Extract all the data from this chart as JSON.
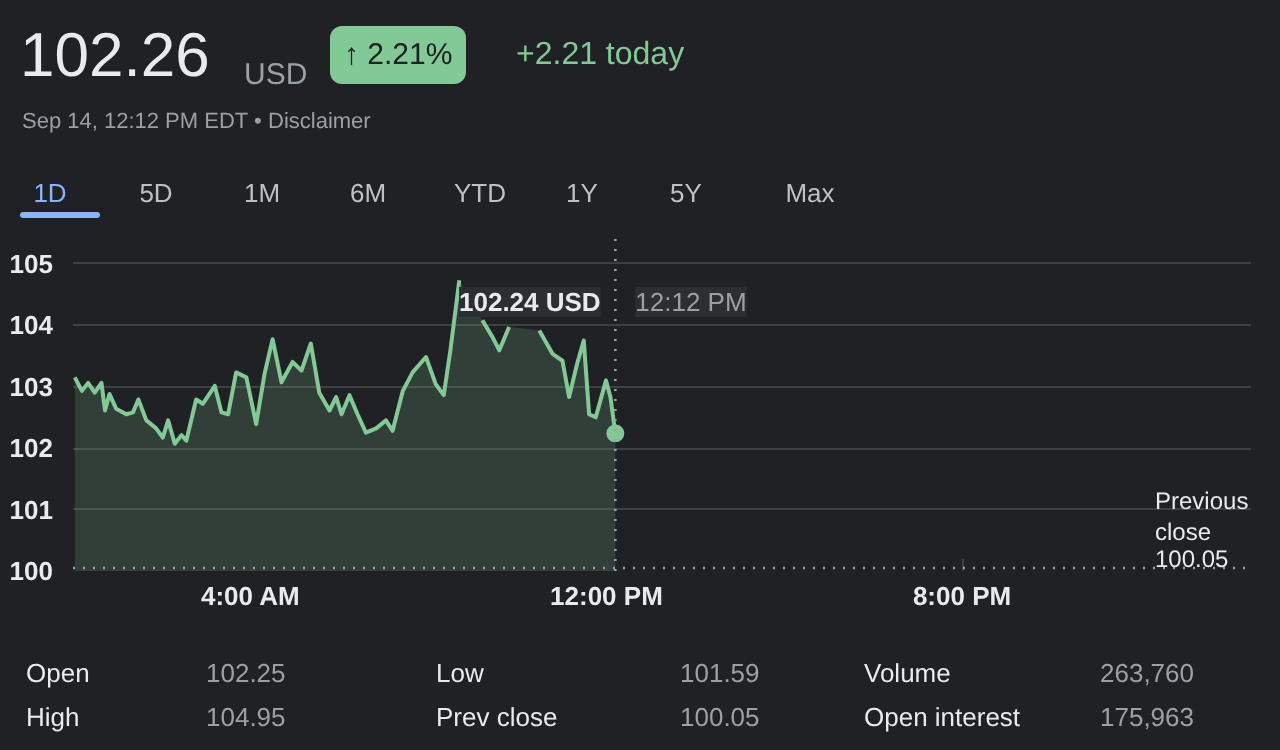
{
  "chart_data": {
    "type": "area",
    "title": "102.26",
    "annotations": [
      "USD",
      "↑ 2.21%",
      "+2.21 today",
      "Sep 14, 12:12 PM EDT •",
      "Disclaimer",
      "1D",
      "5D",
      "1M",
      "6M",
      "YTD",
      "1Y",
      "5Y",
      "Max",
      "Open",
      "102.25",
      "High",
      "104.95",
      "Low",
      "101.59",
      "Prev close",
      "100.05",
      "Volume",
      "263,760",
      "Open interest",
      "175,963",
      "102.24 USD"
    ],
    "x": [
      0.04,
      0.2,
      0.34,
      0.49,
      0.64,
      0.72,
      0.82,
      0.97,
      1.2,
      1.35,
      1.47,
      1.65,
      1.87,
      2.02,
      2.14,
      2.29,
      2.44,
      2.55,
      2.77,
      2.92,
      3.19,
      3.34,
      3.49,
      3.67,
      3.9,
      4.12,
      4.31,
      4.49,
      4.69,
      4.94,
      5.14,
      5.35,
      5.54,
      5.77,
      5.92,
      6.04,
      6.22,
      6.4,
      6.59,
      6.82,
      7.04,
      7.19,
      7.42,
      7.64,
      7.94,
      8.16,
      8.34,
      8.49,
      8.69,
      8.91,
      9.21,
      9.44,
      9.59,
      9.81,
      10.1,
      10.49,
      10.79,
      11.01,
      11.16,
      11.34,
      11.49,
      11.61,
      11.76,
      11.99,
      12.09,
      12.2
    ],
    "series": [
      {
        "color": "#81c995",
        "values": [
          103.15,
          102.93,
          103.06,
          102.9,
          103.06,
          102.61,
          102.88,
          102.64,
          102.55,
          102.58,
          102.79,
          102.45,
          102.32,
          102.17,
          102.45,
          102.07,
          102.21,
          102.12,
          102.79,
          102.72,
          103.01,
          102.58,
          102.55,
          103.23,
          103.15,
          102.39,
          103.21,
          103.77,
          103.07,
          103.4,
          103.26,
          103.7,
          102.9,
          102.61,
          102.83,
          102.55,
          102.86,
          102.55,
          102.25,
          102.32,
          102.45,
          102.28,
          102.93,
          103.23,
          103.48,
          103.04,
          102.86,
          103.59,
          104.73,
          null,
          104.08,
          103.8,
          103.59,
          103.97,
          null,
          103.91,
          103.53,
          103.42,
          102.83,
          103.37,
          103.75,
          102.55,
          102.5,
          103.1,
          102.83,
          102.24
        ]
      }
    ],
    "xlim": [
      0,
      26.5
    ],
    "ylim": [
      100,
      105.4
    ],
    "xticks": [
      {
        "value": 4,
        "label": "4:00 AM"
      },
      {
        "value": 12,
        "label": "12:00 PM"
      },
      {
        "value": 20,
        "label": "8:00 PM"
      }
    ],
    "yticks": [
      100,
      101,
      102,
      103,
      104,
      105
    ],
    "grid": "y",
    "ref_lines": [
      {
        "axis": "y",
        "value": 100.05,
        "label": "Previous close 100.05",
        "color": "#9aa0a6",
        "line_style": "dotted"
      },
      {
        "axis": "x",
        "value": 12.2,
        "label": "12:12 PM",
        "color": "#9aa0a6",
        "line_style": "dotted"
      }
    ]
  }
}
